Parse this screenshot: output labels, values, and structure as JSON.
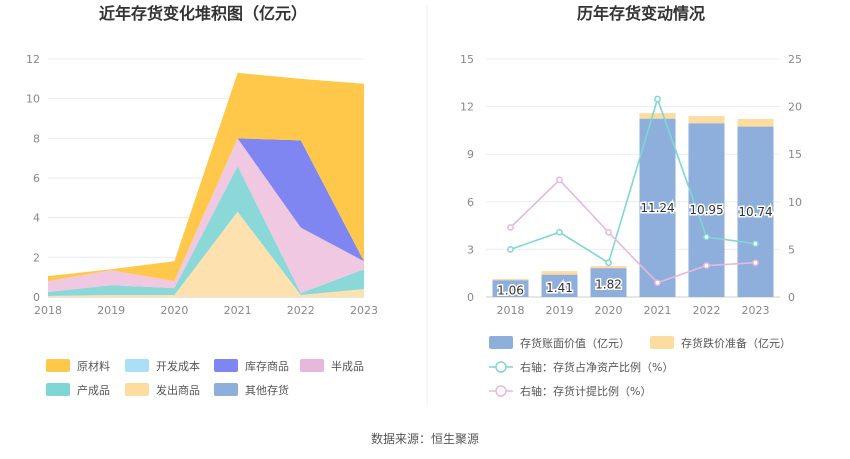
{
  "source_note": "数据来源：恒生聚源",
  "chart_data": [
    {
      "type": "area",
      "stacked": true,
      "title": "近年存货变化堆积图（亿元）",
      "categories": [
        "2018",
        "2019",
        "2020",
        "2021",
        "2022",
        "2023"
      ],
      "ylim": [
        0,
        12
      ],
      "yticks": [
        "0",
        "2",
        "4",
        "6",
        "8",
        "10",
        "12"
      ],
      "grid": true,
      "legend_position": "bottom",
      "series": [
        {
          "name": "其他存货",
          "color": "#8eaedb",
          "values": [
            0,
            0,
            0,
            0,
            0,
            0
          ]
        },
        {
          "name": "发出商品",
          "color": "#fde2b0",
          "values": [
            0.05,
            0.1,
            0.1,
            4.3,
            0.1,
            0.4
          ]
        },
        {
          "name": "产成品",
          "color": "#8ad8d8",
          "values": [
            0.2,
            0.5,
            0.35,
            2.3,
            0.1,
            1.0
          ]
        },
        {
          "name": "半成品",
          "color": "#f0c8e2",
          "values": [
            0.55,
            0.75,
            0.35,
            1.4,
            3.3,
            0.4
          ]
        },
        {
          "name": "库存商品",
          "color": "#7f86f2",
          "values": [
            0,
            0,
            0,
            0,
            4.4,
            0
          ]
        },
        {
          "name": "开发成本",
          "color": "#a9e0f8",
          "values": [
            0,
            0,
            0,
            0,
            0,
            0
          ]
        },
        {
          "name": "原材料",
          "color": "#ffc84a",
          "values": [
            0.25,
            0.05,
            1.0,
            3.3,
            3.1,
            8.95
          ]
        }
      ],
      "legend": [
        {
          "name": "原材料",
          "color": "#ffc84a"
        },
        {
          "name": "开发成本",
          "color": "#a9e0f8"
        },
        {
          "name": "库存商品",
          "color": "#7f86f2"
        },
        {
          "name": "半成品",
          "color": "#e7b8dc"
        },
        {
          "name": "产成品",
          "color": "#7fd6d4"
        },
        {
          "name": "发出商品",
          "color": "#fddca0"
        },
        {
          "name": "其他存货",
          "color": "#8eaedb"
        }
      ]
    },
    {
      "type": "bar",
      "stacked": true,
      "title": "历年存货变动情况",
      "categories": [
        "2018",
        "2019",
        "2020",
        "2021",
        "2022",
        "2023"
      ],
      "ylim": [
        0,
        15
      ],
      "yticks": [
        "0",
        "3",
        "6",
        "9",
        "12",
        "15"
      ],
      "y2lim": [
        0,
        25
      ],
      "y2ticks": [
        "0",
        "5",
        "10",
        "15",
        "20",
        "25"
      ],
      "grid": true,
      "legend_position": "bottom",
      "series": [
        {
          "name": "存货账面价值（亿元）",
          "kind": "bar",
          "axis": "left",
          "color": "#8eaedb",
          "values": [
            1.06,
            1.41,
            1.82,
            11.24,
            10.95,
            10.74
          ],
          "labels": [
            "1.06",
            "1.41",
            "1.82",
            "11.24",
            "10.95",
            "10.74"
          ]
        },
        {
          "name": "存货跌价准备（亿元）",
          "kind": "bar",
          "axis": "left",
          "color": "#fddca0",
          "values": [
            0.08,
            0.22,
            0.13,
            0.35,
            0.45,
            0.48
          ]
        },
        {
          "name": "右轴：存货占净资产比例（%）",
          "kind": "line",
          "axis": "right",
          "color": "#7fd6d4",
          "values": [
            5.0,
            6.8,
            3.6,
            20.8,
            6.3,
            5.6
          ]
        },
        {
          "name": "右轴：存货计提比例（%）",
          "kind": "line",
          "axis": "right",
          "color": "#e7b8dc",
          "values": [
            7.3,
            12.3,
            6.8,
            1.5,
            3.3,
            3.6
          ]
        }
      ]
    }
  ]
}
